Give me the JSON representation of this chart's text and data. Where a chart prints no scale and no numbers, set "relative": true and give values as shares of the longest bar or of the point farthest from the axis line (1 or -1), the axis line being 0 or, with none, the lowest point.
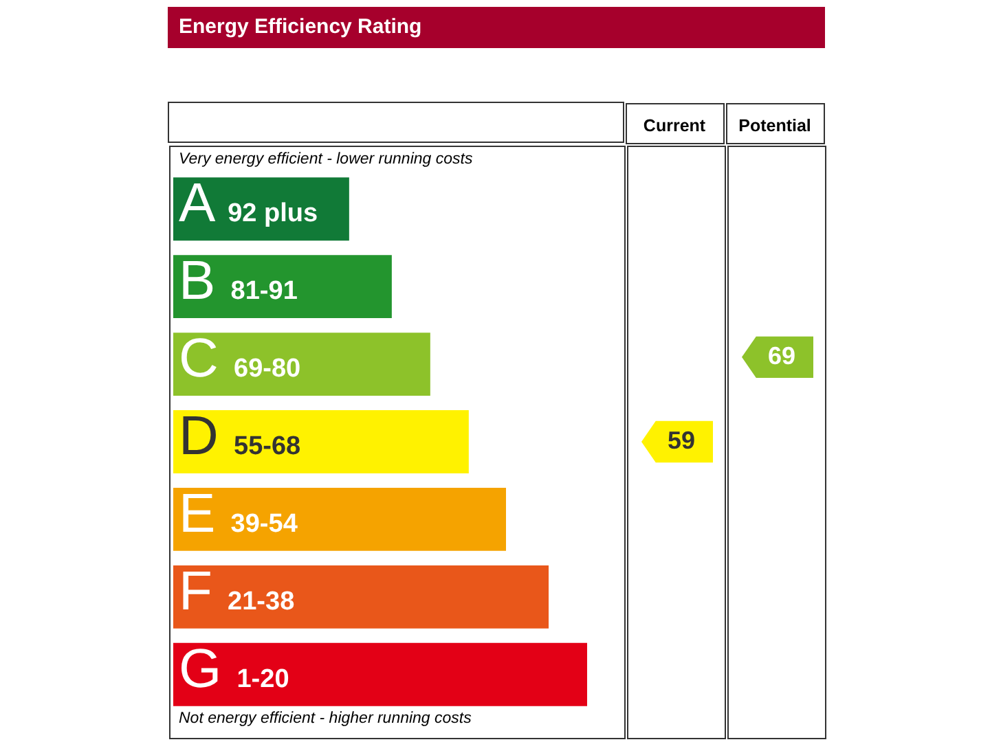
{
  "chart_data": {
    "type": "bar",
    "title": "Energy Efficiency Rating",
    "orientation": "horizontal",
    "relative": true,
    "categories": [
      "A 92 plus",
      "B 81-91",
      "C 69-80",
      "D 55-68",
      "E 39-54",
      "F 21-38",
      "G 1-20"
    ],
    "values": [
      0.425,
      0.528,
      0.621,
      0.714,
      0.804,
      0.907,
      1
    ],
    "colors": [
      "#117a37",
      "#23952e",
      "#8dc22a",
      "#fff200",
      "#f5a300",
      "#e9571a",
      "#e30016"
    ],
    "annotations": [
      "Very energy efficient - lower running costs",
      "Not energy efficient - higher running costs",
      "Current",
      "Potential",
      "59",
      "69"
    ]
  }
}
